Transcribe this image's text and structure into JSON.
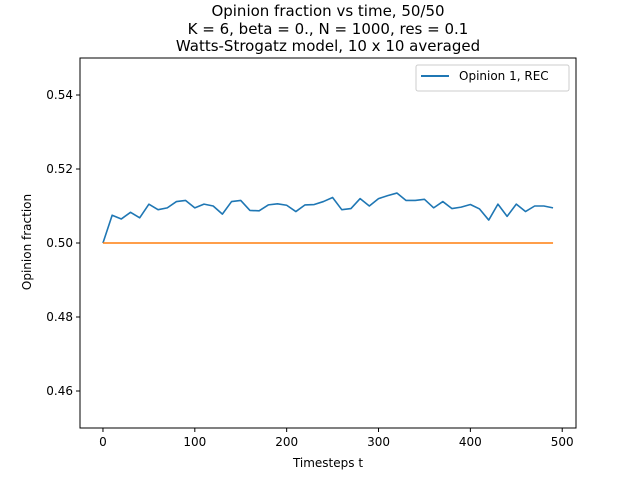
{
  "chart_data": {
    "type": "line",
    "title_lines": [
      "Opinion fraction vs time, 50/50",
      "K = 6, beta = 0., N = 1000, res = 0.1",
      "Watts-Strogatz model, 10 x 10 averaged"
    ],
    "xlabel": "Timesteps t",
    "ylabel": "Opinion fraction",
    "xlim": [
      -25,
      515
    ],
    "ylim": [
      0.45,
      0.55
    ],
    "xticks": [
      0,
      100,
      200,
      300,
      400,
      500
    ],
    "xtick_labels": [
      "0",
      "100",
      "200",
      "300",
      "400",
      "500"
    ],
    "yticks": [
      0.46,
      0.48,
      0.5,
      0.52,
      0.54
    ],
    "ytick_labels": [
      "0.46",
      "0.48",
      "0.50",
      "0.52",
      "0.54"
    ],
    "grid": false,
    "legend_position": "top-right",
    "x": [
      0,
      10,
      20,
      30,
      40,
      50,
      60,
      70,
      80,
      90,
      100,
      110,
      120,
      130,
      140,
      150,
      160,
      170,
      180,
      190,
      200,
      210,
      220,
      230,
      240,
      250,
      260,
      270,
      280,
      290,
      300,
      310,
      320,
      330,
      340,
      350,
      360,
      370,
      380,
      390,
      400,
      410,
      420,
      430,
      440,
      450,
      460,
      470,
      480,
      490
    ],
    "series": [
      {
        "name": "Opinion 1, REC",
        "color": "#1f77b4",
        "in_legend": true,
        "values": [
          0.5,
          0.5075,
          0.5065,
          0.5083,
          0.5068,
          0.5105,
          0.509,
          0.5095,
          0.5112,
          0.5115,
          0.5095,
          0.5105,
          0.51,
          0.5078,
          0.5112,
          0.5115,
          0.5088,
          0.5087,
          0.5103,
          0.5106,
          0.5102,
          0.5085,
          0.5103,
          0.5104,
          0.5112,
          0.5123,
          0.509,
          0.5093,
          0.512,
          0.51,
          0.512,
          0.5128,
          0.5135,
          0.5115,
          0.5115,
          0.5118,
          0.5095,
          0.5112,
          0.5093,
          0.5097,
          0.5104,
          0.5092,
          0.5062,
          0.5105,
          0.5072,
          0.5105,
          0.5085,
          0.51,
          0.51,
          0.5095
        ]
      },
      {
        "color": "#ff7f0e",
        "in_legend": false,
        "values": [
          0.5,
          0.5,
          0.5,
          0.5,
          0.5,
          0.5,
          0.5,
          0.5,
          0.5,
          0.5,
          0.5,
          0.5,
          0.5,
          0.5,
          0.5,
          0.5,
          0.5,
          0.5,
          0.5,
          0.5,
          0.5,
          0.5,
          0.5,
          0.5,
          0.5,
          0.5,
          0.5,
          0.5,
          0.5,
          0.5,
          0.5,
          0.5,
          0.5,
          0.5,
          0.5,
          0.5,
          0.5,
          0.5,
          0.5,
          0.5,
          0.5,
          0.5,
          0.5,
          0.5,
          0.5,
          0.5,
          0.5,
          0.5,
          0.5,
          0.5
        ]
      }
    ]
  }
}
